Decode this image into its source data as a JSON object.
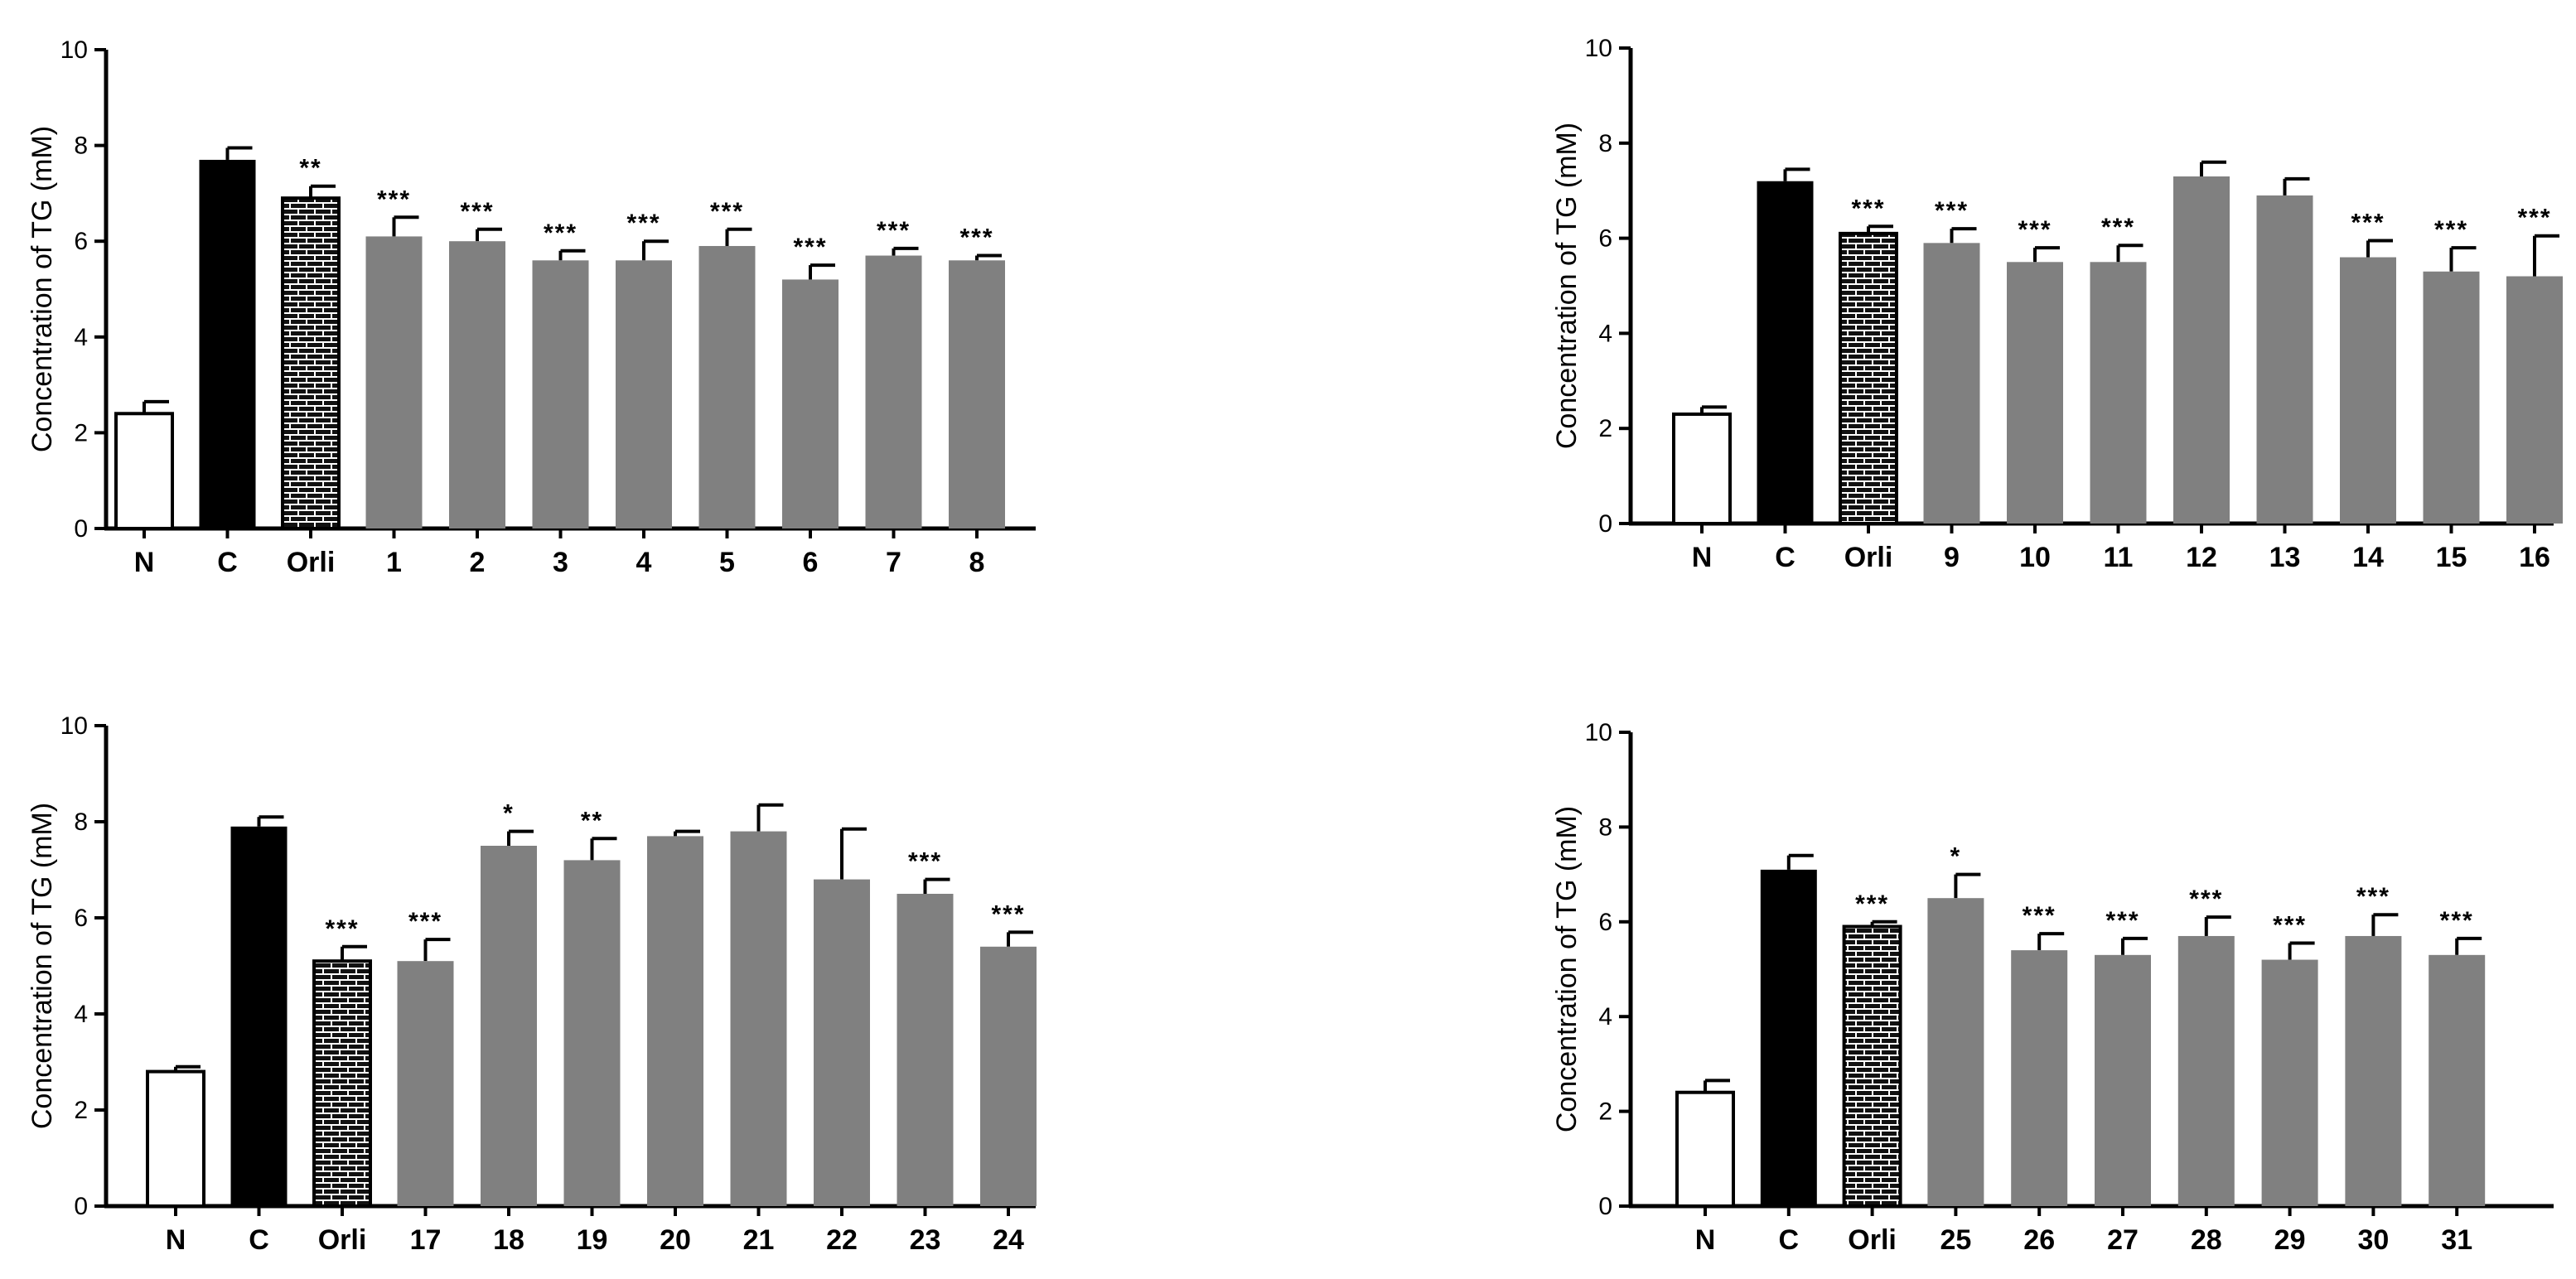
{
  "colors": {
    "normal": "#ffffff",
    "control": "#000000",
    "orlistat": "#1a1a1a",
    "compound": "#808080",
    "axis": "#000000"
  },
  "chart_data": [
    {
      "type": "bar",
      "ylabel": "Concentration of TG (mM)",
      "ylim": [
        0,
        10
      ],
      "yticks": [
        "0",
        "2",
        "4",
        "6",
        "8",
        "10"
      ],
      "categories": [
        "N",
        "C",
        "Orli",
        "1",
        "2",
        "3",
        "4",
        "5",
        "6",
        "7",
        "8"
      ],
      "values": [
        2.4,
        7.7,
        6.9,
        6.1,
        6.0,
        5.6,
        5.6,
        5.9,
        5.2,
        5.7,
        5.6
      ],
      "errors": [
        0.25,
        0.25,
        0.25,
        0.4,
        0.25,
        0.2,
        0.4,
        0.35,
        0.3,
        0.15,
        0.1
      ],
      "significance": [
        "",
        "",
        "**",
        "***",
        "***",
        "***",
        "***",
        "***",
        "***",
        "***",
        "***"
      ]
    },
    {
      "type": "bar",
      "ylabel": "Concentration of TG (mM)",
      "ylim": [
        0,
        10
      ],
      "yticks": [
        "0",
        "2",
        "4",
        "6",
        "8",
        "10"
      ],
      "categories": [
        "N",
        "C",
        "Orli",
        "9",
        "10",
        "11",
        "12",
        "13",
        "14",
        "15",
        "16"
      ],
      "values": [
        2.3,
        7.2,
        6.1,
        5.9,
        5.5,
        5.5,
        7.3,
        6.9,
        5.6,
        5.3,
        5.2
      ],
      "errors": [
        0.15,
        0.25,
        0.15,
        0.3,
        0.3,
        0.35,
        0.3,
        0.35,
        0.35,
        0.5,
        0.85
      ],
      "significance": [
        "",
        "",
        "***",
        "***",
        "***",
        "***",
        "",
        "",
        "***",
        "***",
        "***"
      ]
    },
    {
      "type": "bar",
      "ylabel": "Concentration of TG (mM)",
      "ylim": [
        0,
        10
      ],
      "yticks": [
        "0",
        "2",
        "4",
        "6",
        "8",
        "10"
      ],
      "categories": [
        "N",
        "C",
        "Orli",
        "17",
        "18",
        "19",
        "20",
        "21",
        "22",
        "23",
        "24"
      ],
      "values": [
        2.8,
        7.9,
        5.1,
        5.1,
        7.5,
        7.2,
        7.7,
        7.8,
        6.8,
        6.5,
        5.4
      ],
      "errors": [
        0.1,
        0.2,
        0.3,
        0.45,
        0.3,
        0.45,
        0.1,
        0.55,
        1.05,
        0.3,
        0.3
      ],
      "significance": [
        "",
        "",
        "***",
        "***",
        "*",
        "**",
        "",
        "",
        "",
        "***",
        "***"
      ]
    },
    {
      "type": "bar",
      "ylabel": "Concentration of TG (mM)",
      "ylim": [
        0,
        10
      ],
      "yticks": [
        "0",
        "2",
        "4",
        "6",
        "8",
        "10"
      ],
      "categories": [
        "N",
        "C",
        "Orli",
        "25",
        "26",
        "27",
        "28",
        "29",
        "30",
        "31"
      ],
      "values": [
        2.4,
        7.1,
        5.9,
        6.5,
        5.4,
        5.3,
        5.7,
        5.2,
        5.7,
        5.3
      ],
      "errors": [
        0.25,
        0.3,
        0.1,
        0.5,
        0.35,
        0.35,
        0.4,
        0.35,
        0.45,
        0.35
      ],
      "significance": [
        "",
        "",
        "***",
        "*",
        "***",
        "***",
        "***",
        "***",
        "***",
        "***"
      ]
    }
  ]
}
